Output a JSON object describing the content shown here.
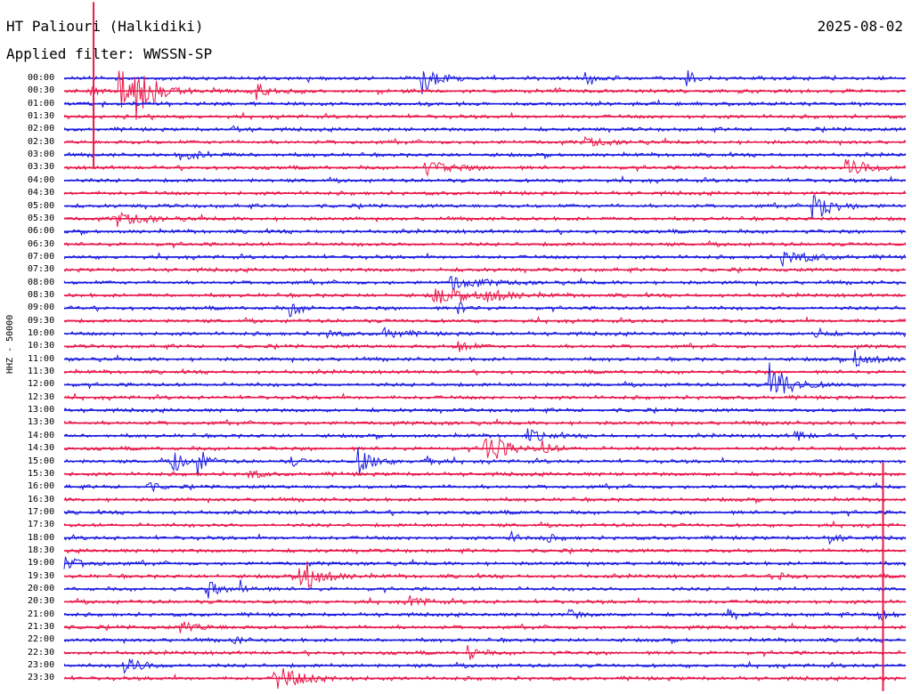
{
  "station": "HT Paliouri (Halkidiki)",
  "date": "2025-08-02",
  "filter_text": "Applied filter: WWSSN-SP",
  "channel_text": "HHZ - 50000",
  "colors": {
    "trace_even": "#1a1adf",
    "trace_odd": "#e8174a"
  },
  "times": [
    "00:00",
    "00:30",
    "01:00",
    "01:30",
    "02:00",
    "02:30",
    "03:00",
    "03:30",
    "04:00",
    "04:30",
    "05:00",
    "05:30",
    "06:00",
    "06:30",
    "07:00",
    "07:30",
    "08:00",
    "08:30",
    "09:00",
    "09:30",
    "10:00",
    "10:30",
    "11:00",
    "11:30",
    "12:00",
    "12:30",
    "13:00",
    "13:30",
    "14:00",
    "14:30",
    "15:00",
    "15:30",
    "16:00",
    "16:30",
    "17:00",
    "17:30",
    "18:00",
    "18:30",
    "19:00",
    "19:30",
    "20:00",
    "20:30",
    "21:00",
    "21:30",
    "22:00",
    "22:30",
    "23:00",
    "23:30"
  ],
  "events": [
    {
      "row": 0,
      "t": 0.425,
      "amp": 18,
      "dur": 0.015
    },
    {
      "row": 0,
      "t": 0.62,
      "amp": 7,
      "dur": 0.01
    },
    {
      "row": 0,
      "t": 0.74,
      "amp": 10,
      "dur": 0.01
    },
    {
      "row": 1,
      "t": 0.03,
      "amp": 8,
      "dur": 0.01
    },
    {
      "row": 1,
      "t": 0.066,
      "amp": 26,
      "dur": 0.02
    },
    {
      "row": 1,
      "t": 0.085,
      "amp": 22,
      "dur": 0.02
    },
    {
      "row": 1,
      "t": 0.23,
      "amp": 10,
      "dur": 0.01
    },
    {
      "row": 4,
      "t": 0.2,
      "amp": 4,
      "dur": 0.01
    },
    {
      "row": 5,
      "t": 0.62,
      "amp": 5,
      "dur": 0.02
    },
    {
      "row": 6,
      "t": 0.14,
      "amp": 5,
      "dur": 0.03
    },
    {
      "row": 7,
      "t": 0.43,
      "amp": 7,
      "dur": 0.03
    },
    {
      "row": 7,
      "t": 0.93,
      "amp": 9,
      "dur": 0.03
    },
    {
      "row": 10,
      "t": 0.89,
      "amp": 18,
      "dur": 0.02
    },
    {
      "row": 11,
      "t": 0.06,
      "amp": 8,
      "dur": 0.03
    },
    {
      "row": 14,
      "t": 0.85,
      "amp": 9,
      "dur": 0.03
    },
    {
      "row": 16,
      "t": 0.46,
      "amp": 8,
      "dur": 0.03
    },
    {
      "row": 17,
      "t": 0.44,
      "amp": 9,
      "dur": 0.04
    },
    {
      "row": 17,
      "t": 0.5,
      "amp": 8,
      "dur": 0.02
    },
    {
      "row": 18,
      "t": 0.27,
      "amp": 10,
      "dur": 0.01
    },
    {
      "row": 18,
      "t": 0.47,
      "amp": 6,
      "dur": 0.01
    },
    {
      "row": 20,
      "t": 0.31,
      "amp": 6,
      "dur": 0.01
    },
    {
      "row": 20,
      "t": 0.38,
      "amp": 6,
      "dur": 0.02
    },
    {
      "row": 20,
      "t": 0.89,
      "amp": 9,
      "dur": 0.01
    },
    {
      "row": 21,
      "t": 0.47,
      "amp": 9,
      "dur": 0.01
    },
    {
      "row": 22,
      "t": 0.94,
      "amp": 9,
      "dur": 0.02
    },
    {
      "row": 24,
      "t": 0.84,
      "amp": 26,
      "dur": 0.02
    },
    {
      "row": 28,
      "t": 0.55,
      "amp": 7,
      "dur": 0.02
    },
    {
      "row": 28,
      "t": 0.87,
      "amp": 7,
      "dur": 0.01
    },
    {
      "row": 29,
      "t": 0.5,
      "amp": 22,
      "dur": 0.02
    },
    {
      "row": 29,
      "t": 0.57,
      "amp": 8,
      "dur": 0.01
    },
    {
      "row": 30,
      "t": 0.13,
      "amp": 14,
      "dur": 0.01
    },
    {
      "row": 30,
      "t": 0.16,
      "amp": 15,
      "dur": 0.01
    },
    {
      "row": 30,
      "t": 0.27,
      "amp": 5,
      "dur": 0.01
    },
    {
      "row": 30,
      "t": 0.35,
      "amp": 15,
      "dur": 0.015
    },
    {
      "row": 30,
      "t": 0.43,
      "amp": 6,
      "dur": 0.01
    },
    {
      "row": 31,
      "t": 0.22,
      "amp": 6,
      "dur": 0.01
    },
    {
      "row": 32,
      "t": 0.1,
      "amp": 6,
      "dur": 0.01
    },
    {
      "row": 36,
      "t": 0.53,
      "amp": 6,
      "dur": 0.01
    },
    {
      "row": 36,
      "t": 0.57,
      "amp": 6,
      "dur": 0.01
    },
    {
      "row": 36,
      "t": 0.91,
      "amp": 7,
      "dur": 0.01
    },
    {
      "row": 38,
      "t": 0.0,
      "amp": 7,
      "dur": 0.02
    },
    {
      "row": 39,
      "t": 0.28,
      "amp": 24,
      "dur": 0.02
    },
    {
      "row": 39,
      "t": 0.85,
      "amp": 6,
      "dur": 0.01
    },
    {
      "row": 40,
      "t": 0.17,
      "amp": 12,
      "dur": 0.01
    },
    {
      "row": 40,
      "t": 0.21,
      "amp": 11,
      "dur": 0.01
    },
    {
      "row": 41,
      "t": 0.41,
      "amp": 8,
      "dur": 0.015
    },
    {
      "row": 42,
      "t": 0.6,
      "amp": 6,
      "dur": 0.01
    },
    {
      "row": 42,
      "t": 0.79,
      "amp": 5,
      "dur": 0.01
    },
    {
      "row": 42,
      "t": 0.97,
      "amp": 12,
      "dur": 0.01
    },
    {
      "row": 43,
      "t": 0.14,
      "amp": 6,
      "dur": 0.02
    },
    {
      "row": 44,
      "t": 0.2,
      "amp": 5,
      "dur": 0.01
    },
    {
      "row": 45,
      "t": 0.48,
      "amp": 10,
      "dur": 0.01
    },
    {
      "row": 46,
      "t": 0.07,
      "amp": 10,
      "dur": 0.02
    },
    {
      "row": 47,
      "t": 0.25,
      "amp": 14,
      "dur": 0.03
    }
  ],
  "markers": [
    {
      "row": 1,
      "t": 0.035,
      "rows": 6
    },
    {
      "row": 37,
      "t": 0.973,
      "rows": 11
    }
  ]
}
